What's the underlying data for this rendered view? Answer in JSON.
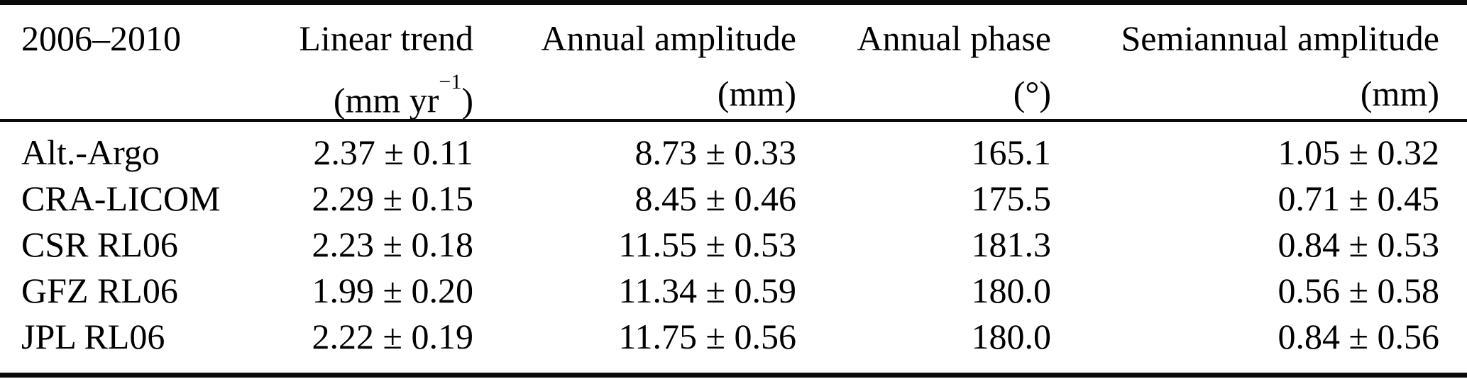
{
  "table": {
    "period": "2006–2010",
    "columns": [
      {
        "name": "Linear trend",
        "unit_prefix": "(mm yr",
        "unit_sup": "−1",
        "unit_suffix": ")"
      },
      {
        "name": "Annual amplitude",
        "unit": "(mm)"
      },
      {
        "name": "Annual phase",
        "unit": "(°)"
      },
      {
        "name": "Semiannual amplitude",
        "unit": "(mm)"
      }
    ],
    "rows": [
      {
        "label": "Alt.-Argo",
        "values": [
          "2.37 ± 0.11",
          "8.73 ± 0.33",
          "165.1",
          "1.05 ± 0.32"
        ]
      },
      {
        "label": "CRA-LICOM",
        "values": [
          "2.29 ± 0.15",
          "8.45 ± 0.46",
          "175.5",
          "0.71 ± 0.45"
        ]
      },
      {
        "label": "CSR RL06",
        "values": [
          "2.23 ± 0.18",
          "11.55 ± 0.53",
          "181.3",
          "0.84 ± 0.53"
        ]
      },
      {
        "label": "GFZ RL06",
        "values": [
          "1.99 ± 0.20",
          "11.34 ± 0.59",
          "180.0",
          "0.56 ± 0.58"
        ]
      },
      {
        "label": "JPL RL06",
        "values": [
          "2.22 ± 0.19",
          "11.75 ± 0.56",
          "180.0",
          "0.84 ± 0.56"
        ]
      }
    ]
  }
}
